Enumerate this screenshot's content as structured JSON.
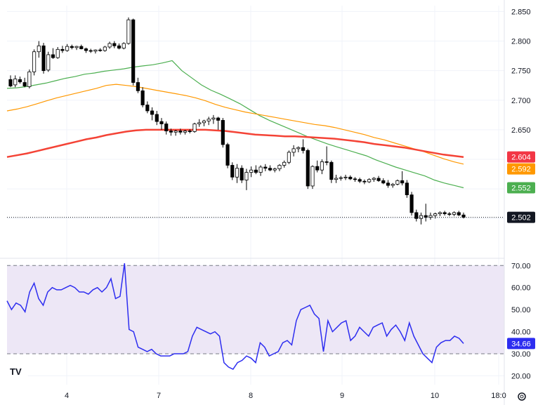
{
  "chart_data": [
    {
      "type": "candlestick",
      "title": "",
      "x_tick_labels": [
        "4",
        "7",
        "8",
        "9",
        "10",
        "18:0"
      ],
      "ylim": [
        2.46,
        2.86
      ],
      "y_ticks": [
        "2.850",
        "2.800",
        "2.750",
        "2.700",
        "2.650",
        "2.600",
        "2.550",
        "2.500"
      ],
      "grid": true,
      "colors": {
        "up": "#ffffff",
        "down": "#000000",
        "wick": "#000000"
      },
      "candles": [
        [
          2.735,
          2.742,
          2.722,
          2.724
        ],
        [
          2.726,
          2.742,
          2.722,
          2.736
        ],
        [
          2.735,
          2.74,
          2.728,
          2.731
        ],
        [
          2.73,
          2.738,
          2.722,
          2.724
        ],
        [
          2.723,
          2.752,
          2.72,
          2.748
        ],
        [
          2.748,
          2.786,
          2.742,
          2.782
        ],
        [
          2.782,
          2.8,
          2.772,
          2.792
        ],
        [
          2.792,
          2.797,
          2.745,
          2.75
        ],
        [
          2.751,
          2.782,
          2.748,
          2.777
        ],
        [
          2.777,
          2.788,
          2.77,
          2.772
        ],
        [
          2.772,
          2.79,
          2.77,
          2.786
        ],
        [
          2.786,
          2.792,
          2.78,
          2.784
        ],
        [
          2.784,
          2.795,
          2.782,
          2.791
        ],
        [
          2.791,
          2.794,
          2.786,
          2.789
        ],
        [
          2.789,
          2.792,
          2.785,
          2.791
        ],
        [
          2.791,
          2.794,
          2.786,
          2.787
        ],
        [
          2.787,
          2.789,
          2.78,
          2.784
        ],
        [
          2.784,
          2.787,
          2.78,
          2.783
        ],
        [
          2.783,
          2.786,
          2.779,
          2.785
        ],
        [
          2.785,
          2.788,
          2.782,
          2.784
        ],
        [
          2.784,
          2.792,
          2.782,
          2.79
        ],
        [
          2.79,
          2.799,
          2.787,
          2.796
        ],
        [
          2.796,
          2.8,
          2.788,
          2.792
        ],
        [
          2.792,
          2.796,
          2.786,
          2.788
        ],
        [
          2.788,
          2.798,
          2.786,
          2.796
        ],
        [
          2.796,
          2.84,
          2.794,
          2.836
        ],
        [
          2.836,
          2.838,
          2.725,
          2.73
        ],
        [
          2.73,
          2.738,
          2.712,
          2.716
        ],
        [
          2.716,
          2.722,
          2.688,
          2.692
        ],
        [
          2.692,
          2.698,
          2.678,
          2.682
        ],
        [
          2.682,
          2.688,
          2.666,
          2.676
        ],
        [
          2.676,
          2.682,
          2.658,
          2.664
        ],
        [
          2.664,
          2.67,
          2.65,
          2.66
        ],
        [
          2.66,
          2.664,
          2.642,
          2.648
        ],
        [
          2.648,
          2.652,
          2.64,
          2.646
        ],
        [
          2.646,
          2.65,
          2.64,
          2.648
        ],
        [
          2.648,
          2.652,
          2.642,
          2.646
        ],
        [
          2.646,
          2.65,
          2.642,
          2.648
        ],
        [
          2.648,
          2.651,
          2.644,
          2.647
        ],
        [
          2.647,
          2.662,
          2.645,
          2.66
        ],
        [
          2.66,
          2.668,
          2.655,
          2.662
        ],
        [
          2.662,
          2.667,
          2.656,
          2.665
        ],
        [
          2.665,
          2.672,
          2.658,
          2.668
        ],
        [
          2.668,
          2.675,
          2.66,
          2.67
        ],
        [
          2.67,
          2.672,
          2.65,
          2.666
        ],
        [
          2.666,
          2.67,
          2.62,
          2.625
        ],
        [
          2.625,
          2.628,
          2.585,
          2.59
        ],
        [
          2.59,
          2.595,
          2.565,
          2.57
        ],
        [
          2.57,
          2.592,
          2.56,
          2.585
        ],
        [
          2.585,
          2.59,
          2.56,
          2.565
        ],
        [
          2.565,
          2.584,
          2.548,
          2.578
        ],
        [
          2.578,
          2.588,
          2.57,
          2.582
        ],
        [
          2.582,
          2.59,
          2.575,
          2.578
        ],
        [
          2.578,
          2.59,
          2.572,
          2.587
        ],
        [
          2.587,
          2.592,
          2.58,
          2.585
        ],
        [
          2.585,
          2.59,
          2.58,
          2.582
        ],
        [
          2.582,
          2.586,
          2.578,
          2.584
        ],
        [
          2.584,
          2.592,
          2.58,
          2.59
        ],
        [
          2.59,
          2.598,
          2.586,
          2.595
        ],
        [
          2.595,
          2.615,
          2.592,
          2.612
        ],
        [
          2.612,
          2.624,
          2.605,
          2.618
        ],
        [
          2.618,
          2.622,
          2.612,
          2.62
        ],
        [
          2.62,
          2.634,
          2.61,
          2.615
        ],
        [
          2.615,
          2.618,
          2.55,
          2.555
        ],
        [
          2.555,
          2.59,
          2.55,
          2.588
        ],
        [
          2.588,
          2.598,
          2.578,
          2.582
        ],
        [
          2.582,
          2.6,
          2.575,
          2.596
        ],
        [
          2.596,
          2.622,
          2.59,
          2.595
        ],
        [
          2.595,
          2.598,
          2.56,
          2.566
        ],
        [
          2.566,
          2.574,
          2.56,
          2.568
        ],
        [
          2.568,
          2.572,
          2.564,
          2.569
        ],
        [
          2.569,
          2.574,
          2.565,
          2.57
        ],
        [
          2.57,
          2.573,
          2.565,
          2.567
        ],
        [
          2.567,
          2.57,
          2.562,
          2.566
        ],
        [
          2.566,
          2.569,
          2.56,
          2.563
        ],
        [
          2.563,
          2.566,
          2.558,
          2.562
        ],
        [
          2.562,
          2.568,
          2.56,
          2.566
        ],
        [
          2.566,
          2.57,
          2.562,
          2.568
        ],
        [
          2.568,
          2.572,
          2.562,
          2.564
        ],
        [
          2.564,
          2.568,
          2.558,
          2.56
        ],
        [
          2.56,
          2.565,
          2.552,
          2.556
        ],
        [
          2.556,
          2.56,
          2.552,
          2.558
        ],
        [
          2.558,
          2.566,
          2.556,
          2.564
        ],
        [
          2.564,
          2.58,
          2.556,
          2.56
        ],
        [
          2.56,
          2.565,
          2.535,
          2.54
        ],
        [
          2.54,
          2.545,
          2.505,
          2.51
        ],
        [
          2.51,
          2.515,
          2.495,
          2.5
        ],
        [
          2.5,
          2.51,
          2.49,
          2.505
        ],
        [
          2.505,
          2.525,
          2.495,
          2.502
        ],
        [
          2.502,
          2.51,
          2.498,
          2.505
        ],
        [
          2.505,
          2.51,
          2.5,
          2.508
        ],
        [
          2.508,
          2.512,
          2.504,
          2.51
        ],
        [
          2.51,
          2.513,
          2.505,
          2.508
        ],
        [
          2.508,
          2.511,
          2.504,
          2.507
        ],
        [
          2.507,
          2.512,
          2.504,
          2.51
        ],
        [
          2.51,
          2.513,
          2.504,
          2.506
        ],
        [
          2.506,
          2.51,
          2.5,
          2.502
        ]
      ],
      "series": [
        {
          "color": "#4caf50",
          "values": [
            2.72,
            2.721,
            2.723,
            2.726,
            2.729,
            2.733,
            2.737,
            2.74,
            2.744,
            2.746,
            2.749,
            2.751,
            2.753,
            2.756,
            2.758,
            2.76,
            2.763,
            2.767,
            2.75,
            2.738,
            2.726,
            2.717,
            2.71,
            2.702,
            2.694,
            2.684,
            2.674,
            2.666,
            2.659,
            2.652,
            2.645,
            2.638,
            2.632,
            2.626,
            2.621,
            2.616,
            2.611,
            2.606,
            2.599,
            2.593,
            2.587,
            2.582,
            2.577,
            2.572,
            2.565,
            2.56,
            2.556,
            2.552
          ]
        },
        {
          "color": "#ff9800",
          "values": [
            2.682,
            2.685,
            2.689,
            2.694,
            2.699,
            2.704,
            2.708,
            2.712,
            2.716,
            2.72,
            2.725,
            2.727,
            2.725,
            2.723,
            2.72,
            2.717,
            2.714,
            2.711,
            2.708,
            2.704,
            2.699,
            2.693,
            2.688,
            2.684,
            2.68,
            2.677,
            2.674,
            2.671,
            2.668,
            2.665,
            2.662,
            2.659,
            2.657,
            2.654,
            2.65,
            2.646,
            2.642,
            2.637,
            2.633,
            2.628,
            2.623,
            2.618,
            2.613,
            2.607,
            2.601,
            2.596,
            2.592
          ]
        },
        {
          "color": "#f44336",
          "values": [
            2.604,
            2.607,
            2.61,
            2.614,
            2.618,
            2.622,
            2.626,
            2.63,
            2.634,
            2.637,
            2.641,
            2.644,
            2.647,
            2.649,
            2.65,
            2.65,
            2.65,
            2.65,
            2.65,
            2.65,
            2.65,
            2.649,
            2.648,
            2.646,
            2.644,
            2.642,
            2.641,
            2.64,
            2.639,
            2.639,
            2.638,
            2.637,
            2.636,
            2.635,
            2.633,
            2.631,
            2.629,
            2.626,
            2.624,
            2.622,
            2.62,
            2.617,
            2.614,
            2.611,
            2.608,
            2.606,
            2.604
          ]
        }
      ],
      "value_labels": [
        {
          "text": "2.604",
          "value": 2.604,
          "color": "#f23645"
        },
        {
          "text": "2.592",
          "value": 2.592,
          "color": "#ff9800"
        },
        {
          "text": "2.552",
          "value": 2.552,
          "color": "#4caf50"
        },
        {
          "text": "2.502",
          "value": 2.502,
          "color": "#131722"
        }
      ]
    },
    {
      "type": "line",
      "ylim": [
        16,
        72
      ],
      "y_ticks": [
        "70.00",
        "60.00",
        "50.00",
        "40.00",
        "30.00",
        "20.00"
      ],
      "bands": [
        70,
        30
      ],
      "band_fill": "#ede7f6",
      "line_color": "#2d2df0",
      "current_label": {
        "text": "34.66",
        "value": 34.66,
        "color": "#2d2df0"
      },
      "values": [
        54,
        50,
        53,
        52,
        49,
        58,
        62,
        55,
        52,
        58,
        60,
        59,
        59,
        60,
        61,
        60,
        58,
        58,
        57,
        59,
        60,
        58,
        60,
        64,
        55,
        56,
        71,
        41,
        40,
        33,
        32,
        31,
        32,
        30,
        29,
        29,
        29,
        30,
        30,
        30,
        31,
        38,
        42,
        41,
        40,
        39,
        40,
        38,
        26,
        24,
        23,
        26,
        27,
        29,
        28,
        26,
        35,
        33,
        29,
        30,
        31,
        35,
        36,
        34,
        45,
        50,
        51,
        52,
        48,
        46,
        31,
        45,
        40,
        42,
        44,
        45,
        36,
        38,
        42,
        40,
        38,
        42,
        43,
        44,
        38,
        41,
        43,
        40,
        36,
        44,
        38,
        34,
        30,
        28,
        26,
        33,
        35,
        36,
        36,
        38,
        37,
        34.66
      ]
    }
  ],
  "logo_text": "TV"
}
